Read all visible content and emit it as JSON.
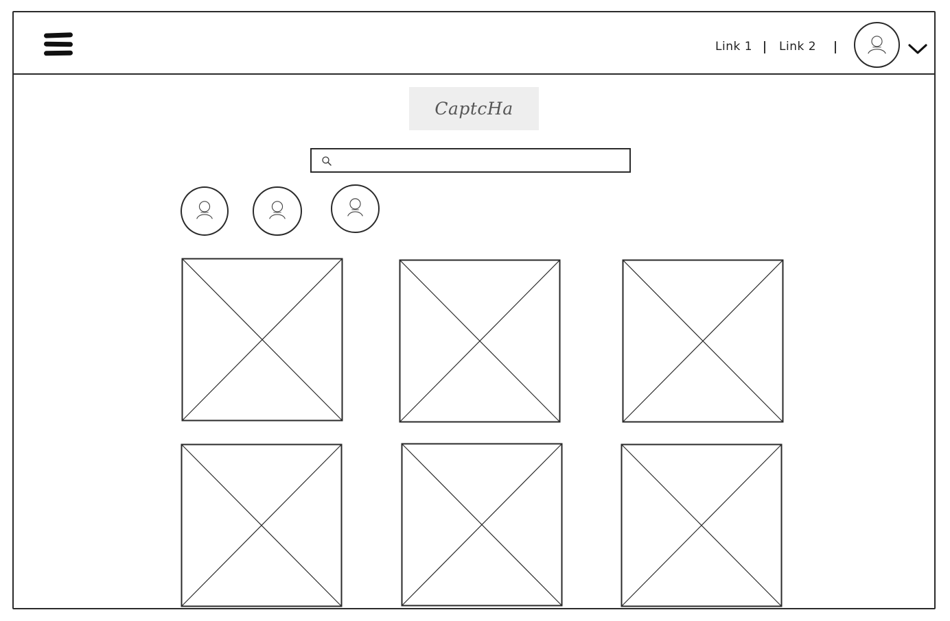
{
  "header": {
    "menu_icon": "hamburger-menu-icon",
    "links": [
      {
        "label": "Link 1"
      },
      {
        "label": "Link 2"
      }
    ],
    "avatar_icon": "user-avatar-icon",
    "dropdown_icon": "chevron-down-icon"
  },
  "main": {
    "captcha_label": "CaptcHa",
    "search": {
      "placeholder": "",
      "value": "",
      "icon": "search-icon"
    },
    "users": [
      {
        "icon": "user-avatar-icon"
      },
      {
        "icon": "user-avatar-icon"
      },
      {
        "icon": "user-avatar-icon"
      }
    ],
    "images": [
      {
        "icon": "image-placeholder-icon"
      },
      {
        "icon": "image-placeholder-icon"
      },
      {
        "icon": "image-placeholder-icon"
      },
      {
        "icon": "image-placeholder-icon"
      },
      {
        "icon": "image-placeholder-icon"
      },
      {
        "icon": "image-placeholder-icon"
      }
    ]
  },
  "colors": {
    "stroke": "#2a2a2a",
    "captcha_bg": "#eeeeee",
    "captcha_text": "#555555"
  }
}
